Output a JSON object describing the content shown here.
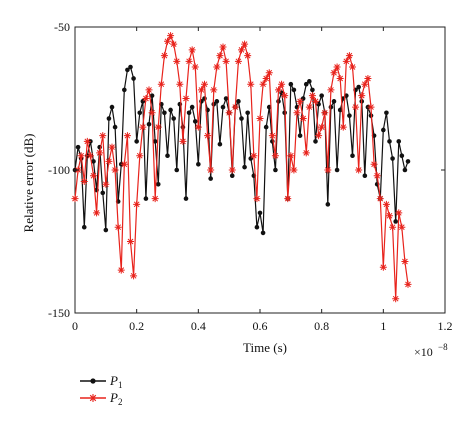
{
  "chart_data": {
    "type": "line",
    "xlabel": "Time (s)",
    "ylabel": "Relative error (dB)",
    "x_multiplier": "×10",
    "x_multiplier_exp": "−8",
    "xlim": [
      0,
      1.2
    ],
    "ylim": [
      -150,
      -50
    ],
    "xticks": [
      "0",
      "0.2",
      "0.4",
      "0.6",
      "0.8",
      "1",
      "1.2"
    ],
    "yticks": [
      "-50",
      "-100",
      "-150"
    ],
    "grid": false,
    "legend_position": "below-left",
    "series": [
      {
        "name": "P",
        "name_sub": "1",
        "color": "#111111",
        "marker": "dot",
        "x": [
          0.0,
          0.01,
          0.02,
          0.03,
          0.04,
          0.05,
          0.06,
          0.07,
          0.08,
          0.09,
          0.1,
          0.11,
          0.12,
          0.13,
          0.14,
          0.15,
          0.16,
          0.17,
          0.18,
          0.19,
          0.2,
          0.21,
          0.22,
          0.23,
          0.24,
          0.25,
          0.26,
          0.27,
          0.28,
          0.29,
          0.3,
          0.31,
          0.32,
          0.33,
          0.34,
          0.35,
          0.36,
          0.37,
          0.38,
          0.39,
          0.4,
          0.41,
          0.42,
          0.43,
          0.44,
          0.45,
          0.46,
          0.47,
          0.48,
          0.49,
          0.5,
          0.51,
          0.52,
          0.53,
          0.54,
          0.55,
          0.56,
          0.57,
          0.58,
          0.59,
          0.6,
          0.61,
          0.62,
          0.63,
          0.64,
          0.65,
          0.66,
          0.67,
          0.68,
          0.69,
          0.7,
          0.71,
          0.72,
          0.73,
          0.74,
          0.75,
          0.76,
          0.77,
          0.78,
          0.79,
          0.8,
          0.81,
          0.82,
          0.83,
          0.84,
          0.85,
          0.86,
          0.87,
          0.88,
          0.89,
          0.9,
          0.91,
          0.92,
          0.93,
          0.94,
          0.95,
          0.96,
          0.97,
          0.98,
          0.99,
          1.0,
          1.01,
          1.02,
          1.03,
          1.04,
          1.05,
          1.06,
          1.07,
          1.08
        ],
        "y": [
          -100,
          -92,
          -96,
          -120,
          -95,
          -90,
          -97,
          -107,
          -92,
          -108,
          -121,
          -82,
          -78,
          -85,
          -111,
          -98,
          -72,
          -65,
          -64,
          -68,
          -90,
          -80,
          -76,
          -110,
          -84,
          -74,
          -90,
          -105,
          -77,
          -80,
          -95,
          -79,
          -82,
          -100,
          -77,
          -85,
          -110,
          -80,
          -78,
          -83,
          -98,
          -76,
          -75,
          -79,
          -103,
          -77,
          -76,
          -91,
          -78,
          -75,
          -80,
          -102,
          -78,
          -76,
          -82,
          -99,
          -80,
          -96,
          -102,
          -120,
          -115,
          -122,
          -85,
          -78,
          -90,
          -100,
          -76,
          -73,
          -80,
          -110,
          -70,
          -72,
          -78,
          -88,
          -75,
          -70,
          -69,
          -72,
          -90,
          -77,
          -74,
          -80,
          -112,
          -78,
          -76,
          -100,
          -79,
          -75,
          -74,
          -81,
          -95,
          -72,
          -71,
          -76,
          -102,
          -78,
          -81,
          -88,
          -105,
          -110,
          -86,
          -80,
          -90,
          -96,
          -118,
          -90,
          -95,
          -100,
          -97
        ]
      },
      {
        "name": "P",
        "name_sub": "2",
        "color": "#e8231c",
        "marker": "star",
        "x": [
          0.0,
          0.01,
          0.02,
          0.03,
          0.04,
          0.05,
          0.06,
          0.07,
          0.08,
          0.09,
          0.1,
          0.11,
          0.12,
          0.13,
          0.14,
          0.15,
          0.16,
          0.17,
          0.18,
          0.19,
          0.2,
          0.21,
          0.22,
          0.23,
          0.24,
          0.25,
          0.26,
          0.27,
          0.28,
          0.29,
          0.3,
          0.31,
          0.32,
          0.33,
          0.34,
          0.35,
          0.36,
          0.37,
          0.38,
          0.39,
          0.4,
          0.41,
          0.42,
          0.43,
          0.44,
          0.45,
          0.46,
          0.47,
          0.48,
          0.49,
          0.5,
          0.51,
          0.52,
          0.53,
          0.54,
          0.55,
          0.56,
          0.57,
          0.58,
          0.59,
          0.6,
          0.61,
          0.62,
          0.63,
          0.64,
          0.65,
          0.66,
          0.67,
          0.68,
          0.69,
          0.7,
          0.71,
          0.72,
          0.73,
          0.74,
          0.75,
          0.76,
          0.77,
          0.78,
          0.79,
          0.8,
          0.81,
          0.82,
          0.83,
          0.84,
          0.85,
          0.86,
          0.87,
          0.88,
          0.89,
          0.9,
          0.91,
          0.92,
          0.93,
          0.94,
          0.95,
          0.96,
          0.97,
          0.98,
          0.99,
          1.0,
          1.01,
          1.02,
          1.03,
          1.04,
          1.05,
          1.06,
          1.07,
          1.08
        ],
        "y": [
          -110,
          -100,
          -95,
          -104,
          -90,
          -95,
          -102,
          -115,
          -94,
          -88,
          -105,
          -97,
          -92,
          -100,
          -120,
          -135,
          -98,
          -88,
          -125,
          -137,
          -112,
          -95,
          -85,
          -75,
          -72,
          -80,
          -110,
          -85,
          -70,
          -60,
          -55,
          -53,
          -56,
          -62,
          -70,
          -90,
          -75,
          -62,
          -58,
          -64,
          -85,
          -72,
          -70,
          -88,
          -100,
          -72,
          -64,
          -60,
          -57,
          -62,
          -80,
          -100,
          -78,
          -62,
          -58,
          -56,
          -60,
          -70,
          -95,
          -110,
          -82,
          -70,
          -68,
          -66,
          -88,
          -95,
          -72,
          -70,
          -74,
          -110,
          -95,
          -100,
          -80,
          -76,
          -82,
          -94,
          -78,
          -74,
          -76,
          -88,
          -85,
          -80,
          -100,
          -72,
          -66,
          -64,
          -68,
          -85,
          -62,
          -60,
          -64,
          -78,
          -100,
          -74,
          -70,
          -68,
          -78,
          -98,
          -102,
          -110,
          -134,
          -112,
          -116,
          -120,
          -145,
          -115,
          -120,
          -132,
          -140
        ]
      }
    ]
  }
}
